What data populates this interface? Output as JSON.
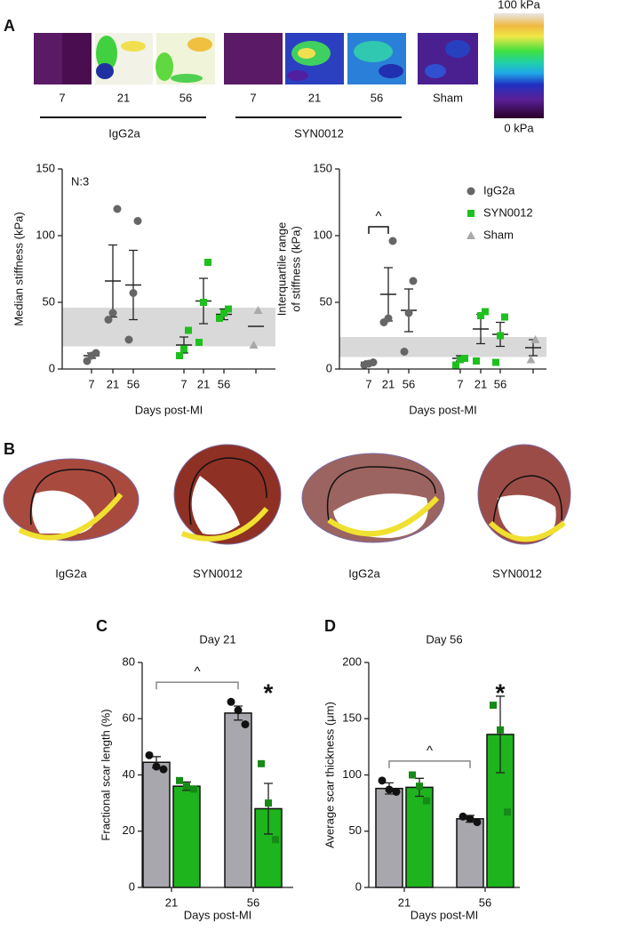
{
  "panel_a": {
    "label": "A",
    "groups": [
      {
        "name": "IgG2a",
        "days": [
          "7",
          "21",
          "56"
        ]
      },
      {
        "name": "SYN0012",
        "days": [
          "7",
          "21",
          "56"
        ]
      }
    ],
    "sham": "Sham",
    "colorbar": {
      "max": "100 kPa",
      "min": "0 kPa"
    }
  },
  "panel_b": {
    "label": "B",
    "captions": [
      "IgG2a",
      "SYN0012",
      "IgG2a",
      "SYN0012"
    ]
  },
  "chart_data": [
    {
      "type": "dot-plot",
      "ylabel": "Median stiffness (kPa)",
      "xlabel": "Days post-MI",
      "categories": [
        "7",
        "21",
        "56",
        "7",
        "21",
        "56",
        null
      ],
      "ylim": [
        0,
        150
      ],
      "yticks": [
        0,
        50,
        100,
        150
      ],
      "band": [
        17,
        46
      ],
      "annotations": [
        {
          "text": "N:3"
        }
      ],
      "series": [
        {
          "color": "#666666",
          "marker": "circle",
          "points": [
            [
              6,
              10,
              12
            ],
            [
              37,
              42,
              120
            ],
            [
              22,
              57,
              111
            ],
            null,
            null,
            null,
            null
          ],
          "values": [
            10,
            66,
            63,
            null,
            null,
            null,
            null
          ],
          "errors": [
            2,
            27,
            26,
            null,
            null,
            null,
            null
          ]
        },
        {
          "color": "#1ec01e",
          "marker": "square",
          "points": [
            null,
            null,
            null,
            [
              10,
              15,
              29
            ],
            [
              20,
              50,
              80
            ],
            [
              38,
              42,
              45
            ],
            null
          ],
          "values": [
            null,
            null,
            null,
            18,
            51,
            41,
            null
          ],
          "errors": [
            null,
            null,
            null,
            6,
            17,
            4,
            null
          ]
        },
        {
          "color": "#a9a9a9",
          "marker": "triangle",
          "points": [
            null,
            null,
            null,
            null,
            null,
            null,
            [
              18,
              44
            ]
          ],
          "values": [
            null,
            null,
            null,
            null,
            null,
            null,
            32
          ],
          "errors": [
            null,
            null,
            null,
            null,
            null,
            null,
            null
          ]
        }
      ]
    },
    {
      "type": "dot-plot",
      "ylabel": [
        "Interquartile range",
        "of stiffness (kPa)"
      ],
      "xlabel": "Days post-MI",
      "categories": [
        "7",
        "21",
        "56",
        "7",
        "21",
        "56",
        null
      ],
      "ylim": [
        0,
        150
      ],
      "yticks": [
        0,
        50,
        100,
        150
      ],
      "band": [
        9,
        24
      ],
      "legend": "upper right",
      "annotations": [
        {
          "text": "^",
          "between": [
            0,
            1
          ]
        }
      ],
      "series": [
        {
          "name": "IgG2a",
          "color": "#666666",
          "marker": "circle",
          "points": [
            [
              3,
              4,
              5
            ],
            [
              35,
              38,
              96
            ],
            [
              13,
              42,
              66
            ],
            null,
            null,
            null,
            null
          ],
          "values": [
            5,
            56,
            44,
            null,
            null,
            null,
            null
          ],
          "errors": [
            1,
            20,
            16,
            null,
            null,
            null,
            null
          ]
        },
        {
          "name": "SYN0012",
          "color": "#1ec01e",
          "marker": "square",
          "points": [
            null,
            null,
            null,
            [
              3,
              7,
              8
            ],
            [
              6,
              40,
              43
            ],
            [
              5,
              25,
              39
            ],
            null
          ],
          "values": [
            null,
            null,
            null,
            8,
            30,
            26,
            null
          ],
          "errors": [
            null,
            null,
            null,
            2,
            11,
            9,
            null
          ]
        },
        {
          "name": "Sham",
          "color": "#a9a9a9",
          "marker": "triangle",
          "points": [
            null,
            null,
            null,
            null,
            null,
            null,
            [
              7,
              22
            ]
          ],
          "values": [
            null,
            null,
            null,
            null,
            null,
            null,
            16
          ],
          "errors": [
            null,
            null,
            null,
            null,
            null,
            null,
            6
          ]
        }
      ]
    },
    {
      "type": "bar",
      "label": "C",
      "title": "Day 21",
      "ylabel": "Fractional scar length (%)",
      "xlabel": "Days post-MI",
      "categories": [
        "21",
        "56"
      ],
      "ylim": [
        0,
        80
      ],
      "yticks": [
        0,
        20,
        40,
        60,
        80
      ],
      "annotations": [
        {
          "text": "^",
          "between": [
            [
              0,
              0
            ],
            [
              0,
              1
            ]
          ]
        },
        {
          "text": "*",
          "at": [
            1,
            1
          ]
        }
      ],
      "series": [
        {
          "color": "#a8a7ad",
          "point_color": "#111111",
          "marker": "circle",
          "values": [
            44.5,
            62
          ],
          "errors": [
            2,
            2.5
          ],
          "points": [
            [
              47,
              43,
              42
            ],
            [
              66,
              63,
              58
            ]
          ]
        },
        {
          "color": "#1db41d",
          "point_color": "#168a16",
          "marker": "square",
          "values": [
            36,
            28
          ],
          "errors": [
            1.5,
            9
          ],
          "points": [
            [
              38,
              36,
              35
            ],
            [
              44,
              30,
              17
            ]
          ]
        }
      ]
    },
    {
      "type": "bar",
      "label": "D",
      "title": "Day 56",
      "ylabel": "Average scar thickness (μm)",
      "xlabel": "Days post-MI",
      "categories": [
        "21",
        "56"
      ],
      "ylim": [
        0,
        200
      ],
      "yticks": [
        0,
        50,
        100,
        150,
        200
      ],
      "annotations": [
        {
          "text": "^",
          "between": [
            [
              0,
              0
            ],
            [
              0,
              1
            ]
          ]
        },
        {
          "text": "*",
          "at": [
            1,
            1
          ]
        }
      ],
      "series": [
        {
          "color": "#a8a7ad",
          "point_color": "#111111",
          "marker": "circle",
          "values": [
            88,
            61
          ],
          "errors": [
            5,
            3
          ],
          "points": [
            [
              95,
              87,
              85
            ],
            [
              63,
              61,
              58
            ]
          ]
        },
        {
          "color": "#1db41d",
          "point_color": "#168a16",
          "marker": "square",
          "values": [
            89,
            136
          ],
          "errors": [
            8,
            34
          ],
          "points": [
            [
              100,
              90,
              77
            ],
            [
              162,
              140,
              67
            ]
          ]
        }
      ]
    }
  ]
}
